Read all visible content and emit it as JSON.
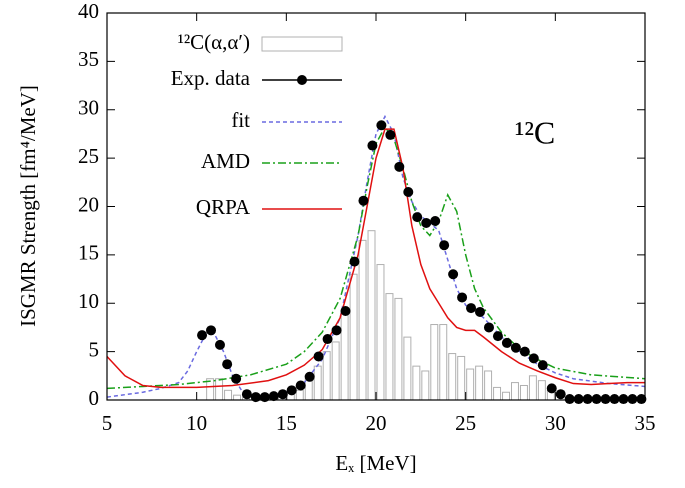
{
  "chart_data": {
    "type": "combo",
    "xlabel": "Eₓ [MeV]",
    "ylabel": "ISGMR Strength [fm⁴/MeV]",
    "annotation": "¹²C",
    "xlim": [
      5,
      35
    ],
    "xticks": [
      5,
      10,
      15,
      20,
      25,
      30,
      35
    ],
    "ylim": [
      0,
      40
    ],
    "yticks": [
      0,
      5,
      10,
      15,
      20,
      25,
      30,
      35,
      40
    ],
    "series": [
      {
        "name": "¹²C(α,α′)",
        "type": "histogram",
        "color": "#b0b0b0",
        "bins": [
          10.5,
          11,
          11.5,
          12,
          12.5,
          13,
          13.5,
          14,
          14.5,
          15,
          15.5,
          16,
          16.5,
          17,
          17.5,
          18,
          18.5,
          19,
          19.5,
          20,
          20.5,
          21,
          21.5,
          22,
          22.5,
          23,
          23.5,
          24,
          24.5,
          25,
          25.5,
          26,
          26.5,
          27,
          27.5,
          28,
          28.5,
          29,
          29.5,
          30
        ],
        "values": [
          2.2,
          2.2,
          1.0,
          0.5,
          0.3,
          0.3,
          0.2,
          0.3,
          0.5,
          0.7,
          1.0,
          2.2,
          3.5,
          5,
          6,
          9,
          13,
          16.5,
          17.5,
          14,
          11,
          10.5,
          6.5,
          3.5,
          3,
          7.8,
          7.8,
          4.8,
          4.5,
          3.2,
          3.5,
          3,
          1.3,
          0.8,
          1.8,
          1.5,
          2.5,
          2,
          1.0
        ]
      },
      {
        "name": "Exp. data",
        "type": "scatter",
        "color": "#000000",
        "x": [
          10.3,
          10.8,
          11.3,
          11.7,
          12.2,
          12.8,
          13.3,
          13.8,
          14.3,
          14.8,
          15.3,
          15.8,
          16.3,
          16.8,
          17.3,
          17.8,
          18.3,
          18.8,
          19.3,
          19.8,
          20.3,
          20.8,
          21.3,
          21.8,
          22.3,
          22.8,
          23.3,
          23.8,
          24.3,
          24.8,
          25.3,
          25.8,
          26.3,
          26.8,
          27.3,
          27.8,
          28.3,
          28.8,
          29.3,
          29.8,
          30.3,
          30.8,
          31.3,
          31.8,
          32.3,
          32.8,
          33.3,
          33.8,
          34.3,
          34.8
        ],
        "values": [
          6.7,
          7.2,
          5.7,
          3.7,
          2.2,
          0.6,
          0.3,
          0.3,
          0.4,
          0.6,
          1.0,
          1.5,
          2.4,
          4.5,
          6.3,
          7.2,
          9.2,
          14.3,
          20.6,
          26.3,
          28.4,
          27.4,
          24.1,
          21.5,
          18.9,
          18.3,
          18.5,
          16.0,
          13.0,
          10.6,
          9.5,
          9.1,
          7.5,
          6.6,
          5.9,
          5.4,
          5.0,
          4.3,
          3.6,
          1.2,
          0.6,
          0.1,
          0.1,
          0.1,
          0.1,
          0.1,
          0.1,
          0.1,
          0.1,
          0.1
        ]
      },
      {
        "name": "fit",
        "type": "line",
        "style": "dashed",
        "color": "#6a6ae0",
        "x": [
          5,
          7,
          8,
          9,
          9.5,
          10,
          10.5,
          11,
          11.5,
          12,
          12.5,
          13,
          14,
          15,
          16,
          17,
          18,
          19,
          19.5,
          20,
          20.5,
          21,
          21.5,
          22,
          22.5,
          23,
          23.5,
          24,
          24.5,
          25,
          25.5,
          26,
          27,
          28,
          29,
          30,
          31,
          33,
          35
        ],
        "values": [
          0.3,
          0.8,
          1.2,
          1.8,
          3,
          5,
          6.8,
          6.8,
          5,
          2.5,
          1,
          0.5,
          0.4,
          0.8,
          1.8,
          4.2,
          8.5,
          17,
          22.5,
          27.5,
          29.3,
          27.5,
          23,
          20.5,
          19,
          18.3,
          17.5,
          14.5,
          11.5,
          9.8,
          9.2,
          8.5,
          6.5,
          5,
          3.7,
          2.8,
          2.2,
          1.7,
          1.4
        ]
      },
      {
        "name": "AMD",
        "type": "line",
        "style": "dashdot",
        "color": "#1aa01a",
        "x": [
          5,
          7,
          9,
          11,
          13,
          15,
          16,
          17,
          18,
          19,
          19.5,
          20,
          20.5,
          21,
          21.5,
          22,
          22.5,
          23,
          23.5,
          24,
          24.5,
          25,
          25.5,
          26,
          27,
          28,
          29,
          30,
          32,
          35
        ],
        "values": [
          1.2,
          1.4,
          1.6,
          2,
          2.6,
          3.7,
          5,
          7,
          10.5,
          17,
          22,
          26.5,
          28.2,
          27,
          24,
          20.5,
          18,
          17,
          18.5,
          21.2,
          19.5,
          15,
          11.5,
          9.5,
          7,
          5.3,
          4.2,
          3.3,
          2.6,
          2.2
        ]
      },
      {
        "name": "QRPA",
        "type": "line",
        "style": "solid",
        "color": "#e01010",
        "x": [
          5,
          6,
          7,
          8,
          10,
          12,
          14,
          15,
          16,
          17,
          18,
          19,
          19.5,
          20,
          20.5,
          21,
          21.5,
          22,
          22.5,
          23,
          23.5,
          24,
          24.5,
          25,
          25.5,
          26,
          27,
          28,
          29,
          30,
          31,
          32,
          33,
          34,
          35
        ],
        "values": [
          4.5,
          2.5,
          1.5,
          1.3,
          1.3,
          1.5,
          2,
          2.6,
          3.6,
          5.2,
          8.5,
          15,
          20,
          25,
          28,
          28,
          24,
          18,
          14,
          11.5,
          10,
          8.5,
          7.5,
          7.2,
          7.2,
          6.5,
          5,
          3.8,
          3,
          2.3,
          1.7,
          1.6,
          1.7,
          1.8,
          1.8
        ]
      }
    ]
  }
}
